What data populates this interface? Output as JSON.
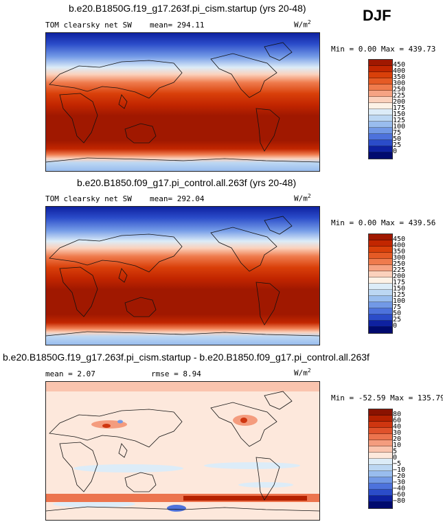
{
  "season": "DJF",
  "panels": [
    {
      "title": "b.e20.B1850G.f19_g17.263f.pi_cism.startup (yrs 20-48)",
      "left_label": "TOM clearsky net SW",
      "mean_label": "mean= 294.11",
      "units_base": "W/m",
      "units_sup": "2",
      "minmax": "Min =   0.00 Max = 439.73",
      "levels": [
        "450",
        "400",
        "350",
        "300",
        "250",
        "225",
        "200",
        "175",
        "150",
        "125",
        "100",
        "75",
        "50",
        "25",
        "0"
      ],
      "colors": [
        "#a01800",
        "#c22600",
        "#d9400a",
        "#e55a25",
        "#ef7b4d",
        "#f6a383",
        "#fbd1bc",
        "#fdf2e6",
        "#dcecf8",
        "#bcd7f3",
        "#99bdee",
        "#7299e6",
        "#4d72dc",
        "#2b4cc9",
        "#0e21a0",
        "#000a6e"
      ]
    },
    {
      "title": "b.e20.B1850.f09_g17.pi_control.all.263f (yrs 20-48)",
      "left_label": "TOM clearsky net SW",
      "mean_label": "mean= 292.04",
      "units_base": "W/m",
      "units_sup": "2",
      "minmax": "Min =   0.00 Max = 439.56",
      "levels": [
        "450",
        "400",
        "350",
        "300",
        "250",
        "225",
        "200",
        "175",
        "150",
        "125",
        "100",
        "75",
        "50",
        "25",
        "0"
      ],
      "colors": [
        "#a01800",
        "#c22600",
        "#d9400a",
        "#e55a25",
        "#ef7b4d",
        "#f6a383",
        "#fbd1bc",
        "#fdf2e6",
        "#dcecf8",
        "#bcd7f3",
        "#99bdee",
        "#7299e6",
        "#4d72dc",
        "#2b4cc9",
        "#0e21a0",
        "#000a6e"
      ]
    },
    {
      "title": "b.e20.B1850G.f19_g17.263f.pi_cism.startup - b.e20.B1850.f09_g17.pi_control.all.263f",
      "left_label": "mean =   2.07",
      "mean_label": "rmse =   8.94",
      "units_base": "W/m",
      "units_sup": "2",
      "minmax": "Min = -52.59 Max = 135.79",
      "levels": [
        "80",
        "60",
        "40",
        "30",
        "20",
        "10",
        "5",
        "0",
        "−5",
        "−10",
        "−20",
        "−30",
        "−40",
        "−60",
        "−80"
      ],
      "colors": [
        "#8a1200",
        "#b42100",
        "#cf3610",
        "#e0522b",
        "#ec744e",
        "#f49c7e",
        "#fac4ae",
        "#fde8dc",
        "#dcecf8",
        "#bcd7f3",
        "#99bdee",
        "#7299e6",
        "#4d72dc",
        "#2b4cc9",
        "#0e21a0",
        "#000a6e"
      ]
    }
  ]
}
